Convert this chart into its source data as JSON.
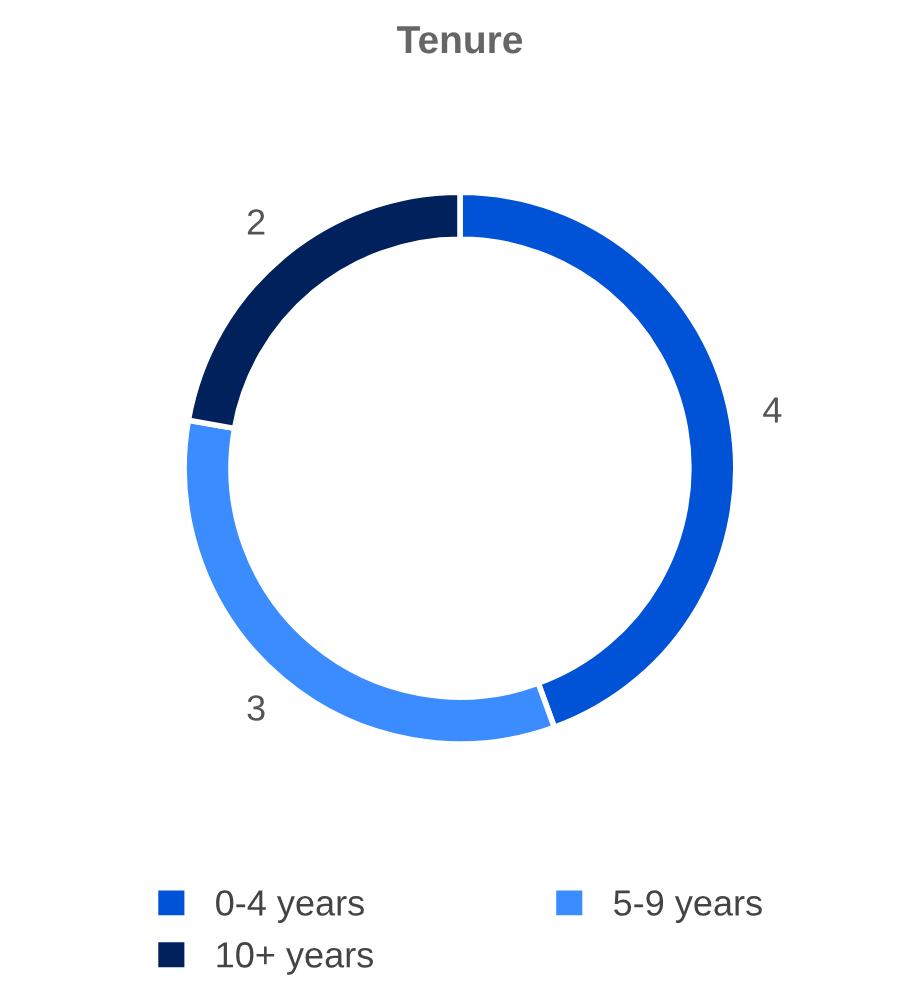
{
  "chart_data": {
    "type": "donut",
    "title": "Tenure",
    "categories": [
      "0-4 years",
      "5-9 years",
      "10+ years"
    ],
    "values": [
      4,
      3,
      2
    ],
    "colors": [
      "#0052d6",
      "#3a8cff",
      "#00215c"
    ],
    "data_labels": true,
    "legend": "bottom"
  }
}
